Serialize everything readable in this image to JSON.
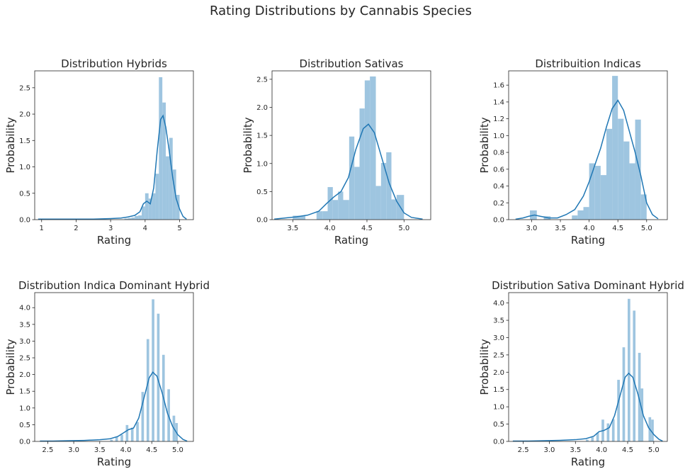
{
  "figure": {
    "title": "Rating Distributions by Cannabis Species"
  },
  "chart_data": [
    {
      "type": "histogram+kde",
      "title": "Distribution Hybrids",
      "xlabel": "Rating",
      "ylabel": "Probability",
      "xlim": [
        0.8,
        5.4
      ],
      "ylim": [
        0,
        2.82
      ],
      "xticks": [
        1,
        2,
        3,
        4,
        5
      ],
      "xtick_labels": [
        "1",
        "2",
        "3",
        "4",
        "5"
      ],
      "yticks": [
        0,
        0.5,
        1.0,
        1.5,
        2.0,
        2.5
      ],
      "ytick_labels": [
        "0.0",
        "0.5",
        "1.0",
        "1.5",
        "2.0",
        "2.5"
      ],
      "bars": [
        {
          "x0": 3.4,
          "x1": 3.5,
          "h": 0.02
        },
        {
          "x0": 3.5,
          "x1": 3.6,
          "h": 0.03
        },
        {
          "x0": 3.6,
          "x1": 3.7,
          "h": 0.04
        },
        {
          "x0": 3.7,
          "x1": 3.8,
          "h": 0.07
        },
        {
          "x0": 3.8,
          "x1": 3.9,
          "h": 0.08
        },
        {
          "x0": 3.9,
          "x1": 4.0,
          "h": 0.25
        },
        {
          "x0": 4.0,
          "x1": 4.1,
          "h": 0.5
        },
        {
          "x0": 4.1,
          "x1": 4.2,
          "h": 0.4
        },
        {
          "x0": 4.2,
          "x1": 4.3,
          "h": 0.5
        },
        {
          "x0": 4.3,
          "x1": 4.4,
          "h": 0.87
        },
        {
          "x0": 4.4,
          "x1": 4.5,
          "h": 2.7
        },
        {
          "x0": 4.5,
          "x1": 4.6,
          "h": 2.22
        },
        {
          "x0": 4.6,
          "x1": 4.7,
          "h": 1.2
        },
        {
          "x0": 4.7,
          "x1": 4.8,
          "h": 1.55
        },
        {
          "x0": 4.8,
          "x1": 4.9,
          "h": 0.95
        },
        {
          "x0": 4.9,
          "x1": 5.0,
          "h": 0.47
        }
      ],
      "kde": {
        "x": [
          0.9,
          1.5,
          2.0,
          2.5,
          3.0,
          3.3,
          3.5,
          3.7,
          3.85,
          3.95,
          4.05,
          4.15,
          4.25,
          4.35,
          4.45,
          4.52,
          4.6,
          4.7,
          4.8,
          4.9,
          5.0,
          5.1,
          5.2
        ],
        "y": [
          0.01,
          0.01,
          0.01,
          0.01,
          0.02,
          0.03,
          0.05,
          0.08,
          0.15,
          0.3,
          0.35,
          0.3,
          0.6,
          1.3,
          1.9,
          1.97,
          1.75,
          1.3,
          0.8,
          0.4,
          0.2,
          0.06,
          0.01
        ]
      }
    },
    {
      "type": "histogram+kde",
      "title": "Distribution Sativas",
      "xlabel": "Rating",
      "ylabel": "Probability",
      "xlim": [
        3.22,
        5.36
      ],
      "ylim": [
        0,
        2.65
      ],
      "xticks": [
        3.5,
        4.0,
        4.5,
        5.0
      ],
      "xtick_labels": [
        "3.5",
        "4.0",
        "4.5",
        "5.0"
      ],
      "yticks": [
        0,
        0.5,
        1.0,
        1.5,
        2.0,
        2.5
      ],
      "ytick_labels": [
        "0.0",
        "0.5",
        "1.0",
        "1.5",
        "2.0",
        "2.5"
      ],
      "bars": [
        {
          "x0": 3.5,
          "x1": 3.67,
          "h": 0.07
        },
        {
          "x0": 3.82,
          "x1": 3.9,
          "h": 0.15
        },
        {
          "x0": 3.9,
          "x1": 3.97,
          "h": 0.15
        },
        {
          "x0": 3.97,
          "x1": 4.04,
          "h": 0.58
        },
        {
          "x0": 4.04,
          "x1": 4.11,
          "h": 0.35
        },
        {
          "x0": 4.11,
          "x1": 4.18,
          "h": 0.5
        },
        {
          "x0": 4.18,
          "x1": 4.26,
          "h": 0.35
        },
        {
          "x0": 4.26,
          "x1": 4.33,
          "h": 1.48
        },
        {
          "x0": 4.33,
          "x1": 4.4,
          "h": 0.94
        },
        {
          "x0": 4.4,
          "x1": 4.47,
          "h": 1.98
        },
        {
          "x0": 4.47,
          "x1": 4.54,
          "h": 2.48
        },
        {
          "x0": 4.54,
          "x1": 4.62,
          "h": 2.55
        },
        {
          "x0": 4.62,
          "x1": 4.69,
          "h": 0.6
        },
        {
          "x0": 4.69,
          "x1": 4.76,
          "h": 1.01
        },
        {
          "x0": 4.76,
          "x1": 4.83,
          "h": 1.2
        },
        {
          "x0": 4.83,
          "x1": 4.9,
          "h": 0.36
        },
        {
          "x0": 4.9,
          "x1": 5.0,
          "h": 0.44
        }
      ],
      "kde": {
        "x": [
          3.25,
          3.4,
          3.55,
          3.7,
          3.85,
          3.95,
          4.05,
          4.15,
          4.25,
          4.35,
          4.45,
          4.52,
          4.6,
          4.7,
          4.8,
          4.9,
          5.0,
          5.1,
          5.25
        ],
        "y": [
          0.01,
          0.03,
          0.05,
          0.08,
          0.15,
          0.28,
          0.4,
          0.5,
          0.75,
          1.25,
          1.62,
          1.7,
          1.55,
          1.1,
          0.65,
          0.33,
          0.12,
          0.04,
          0.01
        ]
      }
    },
    {
      "type": "histogram+kde",
      "title": "Distribuition Indicas",
      "xlabel": "Rating",
      "ylabel": "Probability",
      "xlim": [
        2.6,
        5.36
      ],
      "ylim": [
        0,
        1.77
      ],
      "xticks": [
        3.0,
        3.5,
        4.0,
        4.5,
        5.0
      ],
      "xtick_labels": [
        "3.0",
        "3.5",
        "4.0",
        "4.5",
        "5.0"
      ],
      "yticks": [
        0,
        0.2,
        0.4,
        0.6,
        0.8,
        1.0,
        1.2,
        1.4,
        1.6
      ],
      "ytick_labels": [
        "0.0",
        "0.2",
        "0.4",
        "0.6",
        "0.8",
        "1.0",
        "1.2",
        "1.4",
        "1.6"
      ],
      "bars": [
        {
          "x0": 2.97,
          "x1": 3.09,
          "h": 0.11
        },
        {
          "x0": 3.21,
          "x1": 3.33,
          "h": 0.04
        },
        {
          "x0": 3.7,
          "x1": 3.8,
          "h": 0.05
        },
        {
          "x0": 3.8,
          "x1": 3.9,
          "h": 0.11
        },
        {
          "x0": 3.9,
          "x1": 4.0,
          "h": 0.15
        },
        {
          "x0": 4.0,
          "x1": 4.1,
          "h": 0.67
        },
        {
          "x0": 4.1,
          "x1": 4.2,
          "h": 0.64
        },
        {
          "x0": 4.2,
          "x1": 4.3,
          "h": 0.53
        },
        {
          "x0": 4.3,
          "x1": 4.4,
          "h": 1.08
        },
        {
          "x0": 4.4,
          "x1": 4.5,
          "h": 1.71
        },
        {
          "x0": 4.5,
          "x1": 4.6,
          "h": 1.2
        },
        {
          "x0": 4.6,
          "x1": 4.7,
          "h": 0.93
        },
        {
          "x0": 4.7,
          "x1": 4.8,
          "h": 0.67
        },
        {
          "x0": 4.8,
          "x1": 4.9,
          "h": 1.19
        },
        {
          "x0": 4.9,
          "x1": 5.0,
          "h": 0.3
        }
      ],
      "kde": {
        "x": [
          2.72,
          2.85,
          2.95,
          3.05,
          3.15,
          3.3,
          3.45,
          3.6,
          3.75,
          3.9,
          4.0,
          4.1,
          4.2,
          4.3,
          4.4,
          4.5,
          4.6,
          4.7,
          4.8,
          4.9,
          5.0,
          5.1,
          5.2
        ],
        "y": [
          0.005,
          0.02,
          0.04,
          0.055,
          0.04,
          0.02,
          0.02,
          0.06,
          0.12,
          0.28,
          0.45,
          0.65,
          0.85,
          1.1,
          1.32,
          1.42,
          1.3,
          1.05,
          0.8,
          0.52,
          0.2,
          0.06,
          0.01
        ]
      }
    },
    {
      "type": "histogram+kde",
      "title": "Distribution Indica Dominant Hybrid",
      "xlabel": "Rating",
      "ylabel": "Probability",
      "xlim": [
        2.25,
        5.3
      ],
      "ylim": [
        0,
        4.45
      ],
      "xticks": [
        2.5,
        3.0,
        3.5,
        4.0,
        4.5,
        5.0
      ],
      "xtick_labels": [
        "2.5",
        "3.0",
        "3.5",
        "4.0",
        "4.5",
        "5.0"
      ],
      "yticks": [
        0,
        0.5,
        1.0,
        1.5,
        2.0,
        2.5,
        3.0,
        3.5,
        4.0
      ],
      "ytick_labels": [
        "0.0",
        "0.5",
        "1.0",
        "1.5",
        "2.0",
        "2.5",
        "3.0",
        "3.5",
        "4.0"
      ],
      "bars": [
        {
          "x0": 3.7,
          "x1": 3.75,
          "h": 0.05
        },
        {
          "x0": 3.8,
          "x1": 3.85,
          "h": 0.14
        },
        {
          "x0": 3.9,
          "x1": 3.95,
          "h": 0.2
        },
        {
          "x0": 4.0,
          "x1": 4.05,
          "h": 0.49
        },
        {
          "x0": 4.1,
          "x1": 4.15,
          "h": 0.41
        },
        {
          "x0": 4.2,
          "x1": 4.25,
          "h": 0.58
        },
        {
          "x0": 4.3,
          "x1": 4.35,
          "h": 1.48
        },
        {
          "x0": 4.4,
          "x1": 4.45,
          "h": 3.06
        },
        {
          "x0": 4.5,
          "x1": 4.55,
          "h": 4.25
        },
        {
          "x0": 4.6,
          "x1": 4.65,
          "h": 3.82
        },
        {
          "x0": 4.7,
          "x1": 4.75,
          "h": 2.59
        },
        {
          "x0": 4.8,
          "x1": 4.85,
          "h": 1.56
        },
        {
          "x0": 4.9,
          "x1": 4.95,
          "h": 0.77
        },
        {
          "x0": 4.95,
          "x1": 5.0,
          "h": 0.55
        }
      ],
      "kde": {
        "x": [
          2.35,
          2.6,
          2.9,
          3.2,
          3.5,
          3.7,
          3.85,
          3.95,
          4.05,
          4.15,
          4.25,
          4.35,
          4.45,
          4.52,
          4.6,
          4.7,
          4.8,
          4.9,
          5.0,
          5.1,
          5.18
        ],
        "y": [
          0.01,
          0.01,
          0.02,
          0.03,
          0.05,
          0.08,
          0.15,
          0.25,
          0.35,
          0.4,
          0.7,
          1.3,
          1.9,
          2.07,
          1.95,
          1.45,
          0.85,
          0.45,
          0.2,
          0.06,
          0.01
        ]
      }
    },
    {
      "type": "histogram+kde",
      "title": "Distribution Sativa Dominant Hybrid",
      "xlabel": "Rating",
      "ylabel": "Probability",
      "xlim": [
        2.22,
        5.26
      ],
      "ylim": [
        0,
        4.3
      ],
      "xticks": [
        2.5,
        3.0,
        3.5,
        4.0,
        4.5,
        5.0
      ],
      "xtick_labels": [
        "2.5",
        "3.0",
        "3.5",
        "4.0",
        "4.5",
        "5.0"
      ],
      "yticks": [
        0,
        0.5,
        1.0,
        1.5,
        2.0,
        2.5,
        3.0,
        3.5,
        4.0
      ],
      "ytick_labels": [
        "0.0",
        "0.5",
        "1.0",
        "1.5",
        "2.0",
        "2.5",
        "3.0",
        "3.5",
        "4.0"
      ],
      "bars": [
        {
          "x0": 3.7,
          "x1": 3.75,
          "h": 0.05
        },
        {
          "x0": 3.8,
          "x1": 3.85,
          "h": 0.12
        },
        {
          "x0": 3.9,
          "x1": 3.95,
          "h": 0.25
        },
        {
          "x0": 4.0,
          "x1": 4.05,
          "h": 0.63
        },
        {
          "x0": 4.1,
          "x1": 4.15,
          "h": 0.52
        },
        {
          "x0": 4.2,
          "x1": 4.25,
          "h": 0.64
        },
        {
          "x0": 4.3,
          "x1": 4.35,
          "h": 1.78
        },
        {
          "x0": 4.4,
          "x1": 4.45,
          "h": 2.72
        },
        {
          "x0": 4.5,
          "x1": 4.55,
          "h": 4.12
        },
        {
          "x0": 4.6,
          "x1": 4.65,
          "h": 3.78
        },
        {
          "x0": 4.7,
          "x1": 4.75,
          "h": 2.56
        },
        {
          "x0": 4.75,
          "x1": 4.8,
          "h": 1.53
        },
        {
          "x0": 4.9,
          "x1": 4.95,
          "h": 0.7
        },
        {
          "x0": 4.95,
          "x1": 5.0,
          "h": 0.63
        }
      ],
      "kde": {
        "x": [
          2.3,
          2.6,
          2.9,
          3.2,
          3.5,
          3.7,
          3.85,
          3.95,
          4.05,
          4.15,
          4.25,
          4.35,
          4.45,
          4.52,
          4.6,
          4.7,
          4.8,
          4.9,
          5.0,
          5.1,
          5.17
        ],
        "y": [
          0.01,
          0.01,
          0.02,
          0.03,
          0.05,
          0.08,
          0.15,
          0.28,
          0.32,
          0.4,
          0.75,
          1.3,
          1.85,
          1.97,
          1.85,
          1.35,
          0.75,
          0.4,
          0.2,
          0.06,
          0.01
        ]
      }
    }
  ],
  "colors": {
    "bar": "#9ec5e0",
    "kde": "#2077b4",
    "axis": "#262626",
    "background": "#ffffff"
  }
}
